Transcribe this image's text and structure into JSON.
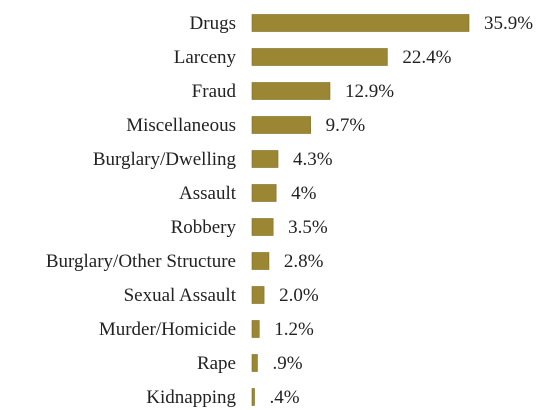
{
  "colors": {
    "bar": "#9a8633",
    "bar_edge": "#7f6d22",
    "text": "#222222",
    "background": "#ffffff"
  },
  "chart_data": {
    "type": "bar",
    "orientation": "horizontal",
    "categories": [
      "Drugs",
      "Larceny",
      "Fraud",
      "Miscellaneous",
      "Burglary/Dwelling",
      "Assault",
      "Robbery",
      "Burglary/Other Structure",
      "Sexual Assault",
      "Murder/Homicide",
      "Rape",
      "Kidnapping"
    ],
    "values": [
      35.9,
      22.4,
      12.9,
      9.7,
      4.3,
      4.0,
      3.5,
      2.8,
      2.0,
      1.2,
      0.9,
      0.4
    ],
    "value_labels": [
      "35.9%",
      "22.4%",
      "12.9%",
      "9.7%",
      "4.3%",
      "4%",
      "3.5%",
      "2.8%",
      "2.0%",
      "1.2%",
      ".9%",
      ".4%"
    ],
    "title": "",
    "xlabel": "",
    "ylabel": "",
    "xlim": [
      0,
      35.9
    ],
    "grid": false,
    "legend": "none"
  }
}
